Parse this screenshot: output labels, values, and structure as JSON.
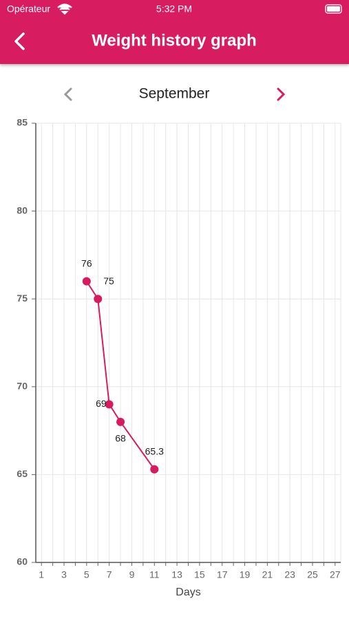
{
  "status_bar": {
    "carrier": "Opérateur",
    "time": "5:32 PM"
  },
  "header": {
    "title": "Weight history graph"
  },
  "month_nav": {
    "month": "September"
  },
  "chart_data": {
    "type": "line",
    "x_label": "Days",
    "x": [
      5,
      6,
      7,
      8,
      11
    ],
    "values": [
      76,
      75,
      69,
      68,
      65.3
    ],
    "color": "#d81b60",
    "xlim": [
      0.5,
      27.5
    ],
    "xticks": [
      1,
      3,
      5,
      7,
      9,
      11,
      13,
      15,
      17,
      19,
      21,
      23,
      25,
      27
    ],
    "x_minor_ticks": [
      2,
      4,
      6,
      8,
      10,
      12,
      14,
      16,
      18,
      20,
      22,
      24,
      26
    ],
    "ylim": [
      60,
      85
    ],
    "yticks": [
      60,
      65,
      70,
      75,
      80,
      85
    ],
    "grid": true
  }
}
